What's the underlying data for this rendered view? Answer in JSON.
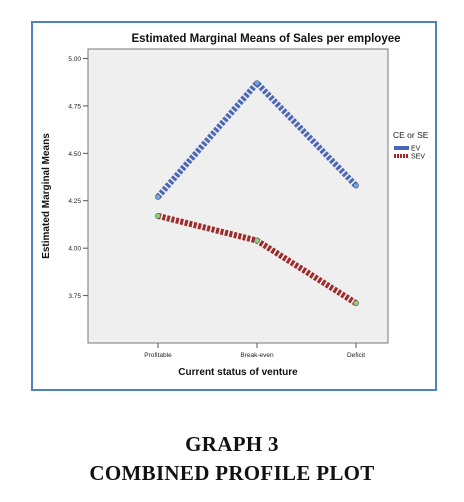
{
  "chart_data": {
    "type": "line",
    "title": "Estimated Marginal Means of Sales per employee",
    "xlabel": "Current status of venture",
    "ylabel": "Estimated Marginal Means",
    "categories": [
      "Profitable",
      "Break-even",
      "Deficit"
    ],
    "ylim": [
      3.5,
      5.05
    ],
    "yticks": [
      3.75,
      4.0,
      4.25,
      4.5,
      4.75,
      5.0
    ],
    "ytick_labels": [
      "3.75",
      "4.00",
      "4.25",
      "4.50",
      "4.75",
      "5.00"
    ],
    "grid": false,
    "legend": {
      "title": "CE or SE",
      "placement": "right"
    },
    "series": [
      {
        "name": "EV",
        "color": "#4a66b8",
        "values": [
          4.27,
          4.87,
          4.33
        ]
      },
      {
        "name": "SEV",
        "color": "#9e2a2a",
        "values": [
          4.17,
          4.04,
          3.71
        ]
      }
    ]
  },
  "caption": {
    "line1": "GRAPH 3",
    "line2": "COMBINED PROFILE PLOT"
  }
}
